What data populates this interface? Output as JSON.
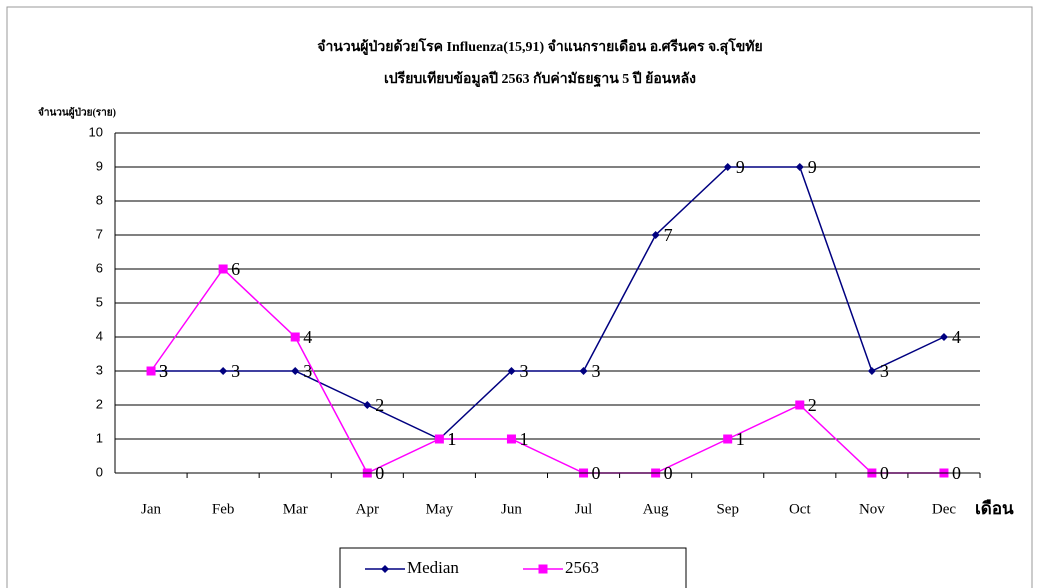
{
  "chart_data": {
    "type": "line",
    "title": "จำนวนผู้ป่วยด้วยโรค  Influenza(15,91)  จำแนกรายเดือน   อ.ศรีนคร จ.สุโขทัย",
    "subtitle": "เปรียบเทียบข้อมูลปี  2563  กับค่ามัธยฐาน 5 ปี ย้อนหลัง",
    "y_label": "จำนวนผู้ป่วย(ราย)",
    "x_label": "เดือน",
    "categories": [
      "Jan",
      "Feb",
      "Mar",
      "Apr",
      "May",
      "Jun",
      "Jul",
      "Aug",
      "Sep",
      "Oct",
      "Nov",
      "Dec"
    ],
    "series": [
      {
        "name": "Median",
        "color": "#000080",
        "marker": "diamond",
        "values": [
          3,
          3,
          3,
          2,
          1,
          3,
          3,
          7,
          9,
          9,
          3,
          4
        ]
      },
      {
        "name": "2563",
        "color": "#ff00ff",
        "marker": "square",
        "values": [
          3,
          6,
          4,
          0,
          1,
          1,
          0,
          0,
          1,
          2,
          0,
          0
        ]
      }
    ],
    "ylim": [
      0,
      10
    ],
    "yticks": [
      0,
      1,
      2,
      3,
      4,
      5,
      6,
      7,
      8,
      9,
      10
    ],
    "grid": true,
    "legend": "bottom"
  }
}
